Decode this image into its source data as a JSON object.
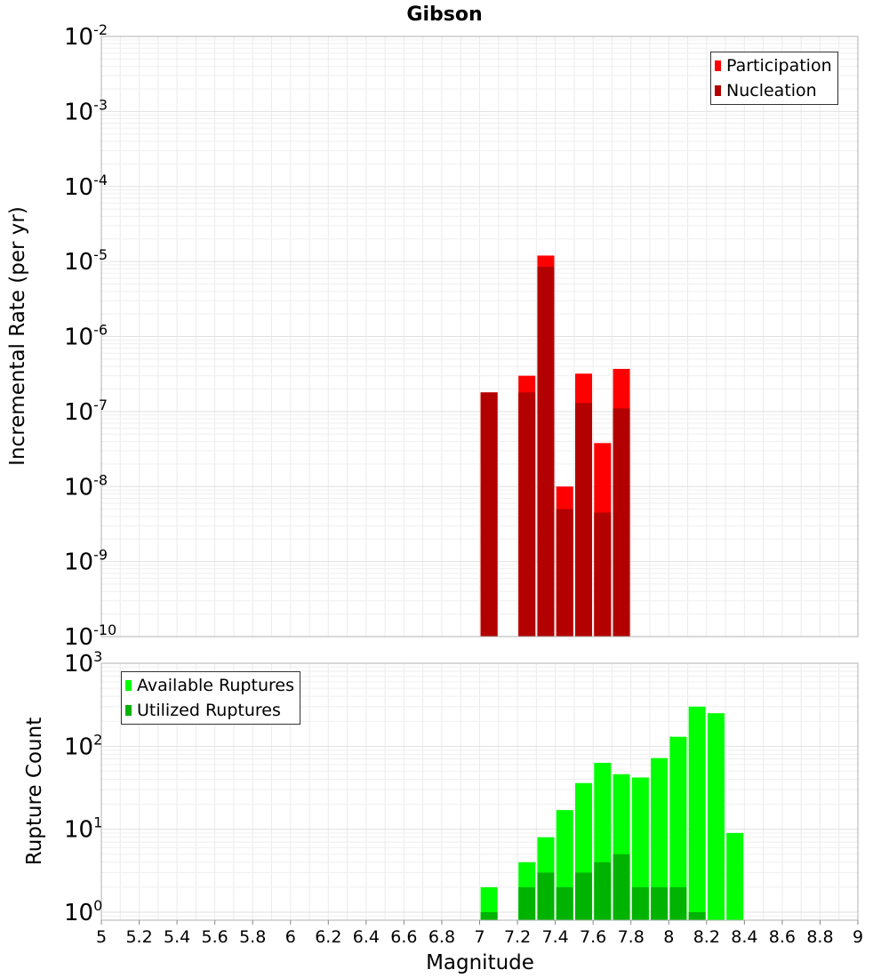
{
  "chart_data": [
    {
      "type": "bar",
      "title": "Gibson",
      "ylabel": "Incremental Rate (per yr)",
      "xlabel": "",
      "yscale": "log",
      "ylim": [
        1e-10,
        0.01
      ],
      "xlim": [
        5,
        9
      ],
      "y_ticks": [
        {
          "base": "10",
          "exp": "-10"
        },
        {
          "base": "10",
          "exp": "-9"
        },
        {
          "base": "10",
          "exp": "-8"
        },
        {
          "base": "10",
          "exp": "-7"
        },
        {
          "base": "10",
          "exp": "-6"
        },
        {
          "base": "10",
          "exp": "-5"
        },
        {
          "base": "10",
          "exp": "-4"
        },
        {
          "base": "10",
          "exp": "-3"
        },
        {
          "base": "10",
          "exp": "-2"
        }
      ],
      "legend_position": "top-right",
      "grid": true,
      "x": [
        7.05,
        7.25,
        7.35,
        7.45,
        7.55,
        7.65,
        7.75
      ],
      "series": [
        {
          "name": "Participation",
          "color": "#ff0000",
          "values": [
            1.8e-07,
            3e-07,
            1.2e-05,
            1e-08,
            3.2e-07,
            3.8e-08,
            3.7e-07
          ]
        },
        {
          "name": "Nucleation",
          "color": "#b30000",
          "values": [
            1.8e-07,
            1.8e-07,
            8.5e-06,
            5e-09,
            1.3e-07,
            4.5e-09,
            1.1e-07
          ]
        }
      ]
    },
    {
      "type": "bar",
      "title": "",
      "ylabel": "Rupture Count",
      "xlabel": "Magnitude",
      "yscale": "log",
      "ylim": [
        0.8,
        1000
      ],
      "xlim": [
        5,
        9
      ],
      "y_ticks": [
        {
          "base": "10",
          "exp": "0",
          "value": 1
        },
        {
          "base": "10",
          "exp": "1",
          "value": 10
        },
        {
          "base": "10",
          "exp": "2",
          "value": 100
        },
        {
          "base": "10",
          "exp": "3",
          "value": 1000
        }
      ],
      "x_ticks": [
        "5",
        "5.2",
        "5.4",
        "5.6",
        "5.8",
        "6",
        "6.2",
        "6.4",
        "6.6",
        "6.8",
        "7",
        "7.2",
        "7.4",
        "7.6",
        "7.8",
        "8",
        "8.2",
        "8.4",
        "8.6",
        "8.8",
        "9"
      ],
      "legend_position": "top-left",
      "grid": true,
      "x": [
        7.05,
        7.25,
        7.35,
        7.45,
        7.55,
        7.65,
        7.75,
        7.85,
        7.95,
        8.05,
        8.15,
        8.25,
        8.35
      ],
      "series": [
        {
          "name": "Available Ruptures",
          "color": "#00ff00",
          "values": [
            2,
            4,
            8,
            17,
            36,
            63,
            46,
            42,
            72,
            130,
            300,
            250,
            9
          ]
        },
        {
          "name": "Utilized Ruptures",
          "color": "#00b300",
          "values": [
            1,
            2,
            3,
            2,
            3,
            4,
            5,
            2,
            2,
            2,
            1,
            0,
            0
          ]
        }
      ]
    }
  ]
}
